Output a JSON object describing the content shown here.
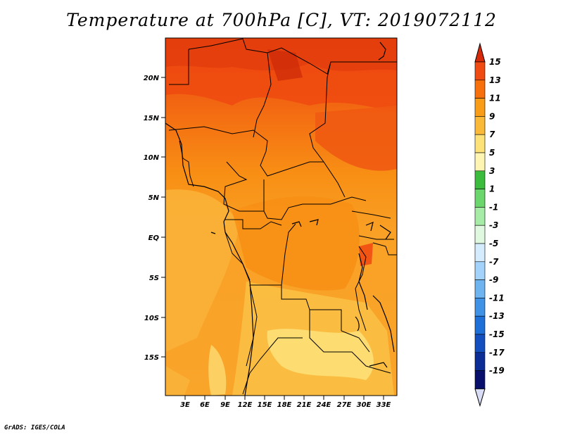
{
  "title": "Temperature at 700hPa [C], VT: 2019072112",
  "credit": "GrADS: IGES/COLA",
  "map": {
    "lat_labels": [
      "20N",
      "15N",
      "10N",
      "5N",
      "EQ",
      "5S",
      "10S",
      "15S"
    ],
    "lon_labels": [
      "3E",
      "6E",
      "9E",
      "12E",
      "15E",
      "18E",
      "21E",
      "24E",
      "27E",
      "30E",
      "33E"
    ]
  },
  "colorbar": {
    "labels": [
      "15",
      "13",
      "11",
      "9",
      "7",
      "5",
      "3",
      "1",
      "-1",
      "-3",
      "-5",
      "-7",
      "-9",
      "-11",
      "-13",
      "-15",
      "-17",
      "-19"
    ],
    "colors": [
      "#d62a0b",
      "#f04b12",
      "#f7700c",
      "#f99c18",
      "#fbb93a",
      "#fde27a",
      "#fff5b3",
      "#3cbc3c",
      "#6bd66b",
      "#a6eca6",
      "#dff8df",
      "#d4ecfd",
      "#a3d3fa",
      "#6eb4f0",
      "#3f92e6",
      "#1f6fd8",
      "#144fbf",
      "#0c2c96",
      "#08106b",
      "#d8dcf5"
    ]
  }
}
